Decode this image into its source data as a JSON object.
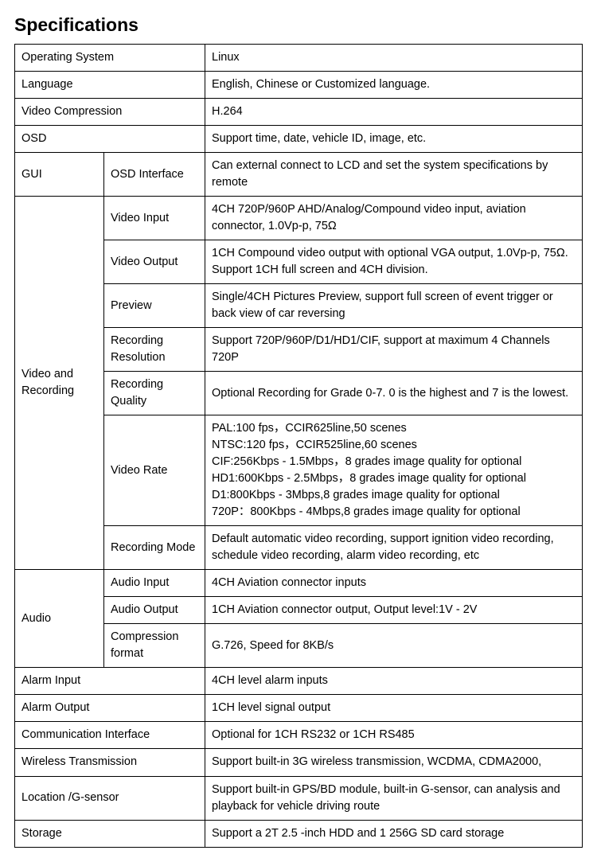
{
  "title": "Specifications",
  "rows": {
    "os_label": "Operating System",
    "os_val": "Linux",
    "lang_label": "Language",
    "lang_val": "English, Chinese or Customized language.",
    "vcomp_label": "Video Compression",
    "vcomp_val": "H.264",
    "osd_label": "OSD",
    "osd_val": "Support    time, date, vehicle ID, image, etc.",
    "gui_label": "GUI",
    "gui_sub": "OSD Interface",
    "gui_val": "Can external connect to LCD and set the system specifications by remote",
    "vr_label": "Video and Recording",
    "vr_vin_label": "Video Input",
    "vr_vin_val": "4CH 720P/960P AHD/Analog/Compound video input, aviation connector, 1.0Vp-p, 75Ω",
    "vr_vout_label": "Video Output",
    "vr_vout_val": "1CH Compound video output with optional VGA output, 1.0Vp-p, 75Ω. Support 1CH full screen and 4CH division.",
    "vr_prev_label": "Preview",
    "vr_prev_val": "Single/4CH Pictures Preview, support full screen of event trigger or back view of car reversing",
    "vr_rres_label": "Recording Resolution",
    "vr_rres_val": "Support 720P/960P/D1/HD1/CIF, support at maximum 4 Channels 720P",
    "vr_rq_label": "Recording Quality",
    "vr_rq_val": "Optional Recording for Grade 0-7. 0 is the highest and 7 is the lowest.",
    "vr_rate_label": "Video Rate",
    "vr_rate_l1": "PAL:100 fps，CCIR625line,50 scenes",
    "vr_rate_l2": "NTSC:120 fps，CCIR525line,60 scenes",
    "vr_rate_l3": "CIF:256Kbps - 1.5Mbps，8 grades image quality for optional",
    "vr_rate_l4": "HD1:600Kbps - 2.5Mbps，8 grades image quality for optional",
    "vr_rate_l5": "D1:800Kbps - 3Mbps,8 grades image quality for optional",
    "vr_rate_l6": "720P：800Kbps - 4Mbps,8 grades image quality for optional",
    "vr_rmode_label": "Recording Mode",
    "vr_rmode_val": "Default automatic video recording, support ignition video recording, schedule video recording, alarm video recording, etc",
    "audio_label": "Audio",
    "audio_in_label": "Audio Input",
    "audio_in_val": "4CH Aviation connector inputs",
    "audio_out_label": "Audio Output",
    "audio_out_val": "1CH Aviation connector output, Output level:1V - 2V",
    "audio_comp_label": "Compression format",
    "audio_comp_val": "G.726, Speed for 8KB/s",
    "alarm_in_label": "Alarm Input",
    "alarm_in_val": "4CH level alarm inputs",
    "alarm_out_label": "Alarm Output",
    "alarm_out_val": "1CH level signal output",
    "comm_label": "Communication Interface",
    "comm_val": "Optional for 1CH RS232 or 1CH RS485",
    "wireless_label": "Wireless Transmission",
    "wireless_val": "Support built-in 3G wireless transmission, WCDMA, CDMA2000,",
    "loc_label": "Location /G-sensor",
    "loc_val": "Support built-in GPS/BD module, built-in G-sensor, can analysis and playback for vehicle driving route",
    "storage_label": "Storage",
    "storage_val": "Support a 2T 2.5 -inch HDD and 1 256G SD card storage"
  }
}
